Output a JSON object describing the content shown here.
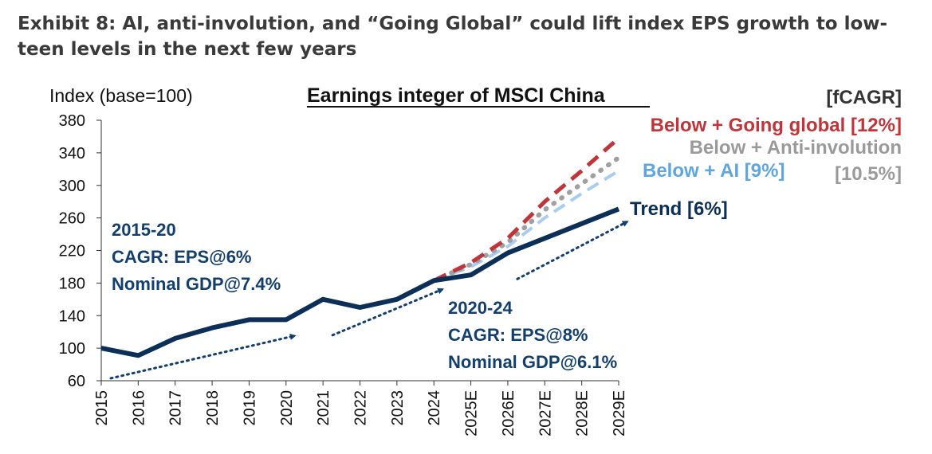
{
  "exhibit": {
    "title": "Exhibit 8: AI, anti-involution, and “Going Global” could lift index EPS growth to low-teen levels in the next few years"
  },
  "colors": {
    "trend": "#0b2f57",
    "going_global": "#c0343a",
    "anti_involution": "#a0a0a0",
    "ai": "#a8cdee",
    "axis": "#333333",
    "annotation": "#123f6e"
  },
  "chart_data": {
    "type": "line",
    "title": "Earnings integer of MSCI China",
    "ylabel": "Index (base=100)",
    "legend_header": "[fCAGR]",
    "x": [
      "2015",
      "2016",
      "2017",
      "2018",
      "2019",
      "2020",
      "2021",
      "2022",
      "2023",
      "2024",
      "2025E",
      "2026E",
      "2027E",
      "2028E",
      "2029E"
    ],
    "ylim": [
      60,
      380
    ],
    "yticks": [
      60,
      100,
      140,
      180,
      220,
      260,
      300,
      340,
      380
    ],
    "series": [
      {
        "name": "Trend",
        "label": "Trend [6%]",
        "style": "solid",
        "values": [
          100,
          91,
          112,
          125,
          135,
          135,
          160,
          150,
          160,
          183,
          190,
          217,
          235,
          253,
          271
        ]
      },
      {
        "name": "Below + Going global",
        "label": "Below + Going global [12%]",
        "style": "dashed",
        "values": [
          null,
          null,
          null,
          null,
          null,
          null,
          null,
          null,
          null,
          183,
          205,
          235,
          280,
          318,
          358
        ]
      },
      {
        "name": "Below + Anti-involution",
        "label": "Below + Anti-involution",
        "cagr_label": "[10.5%]",
        "style": "dotted",
        "values": [
          null,
          null,
          null,
          null,
          null,
          null,
          null,
          null,
          null,
          183,
          203,
          230,
          270,
          302,
          334
        ]
      },
      {
        "name": "Below + AI",
        "label": "Below + AI [9%]",
        "style": "dashed",
        "values": [
          null,
          null,
          null,
          null,
          null,
          null,
          null,
          null,
          null,
          183,
          200,
          225,
          260,
          290,
          318
        ]
      }
    ],
    "annotations": [
      {
        "lines": [
          "2015-20",
          "CAGR: EPS@6%",
          "Nominal GDP@7.4%"
        ]
      },
      {
        "lines": [
          "2020-24",
          "CAGR: EPS@8%",
          "Nominal GDP@6.1%"
        ]
      }
    ],
    "trend_arrows": [
      {
        "from": [
          "2015",
          63
        ],
        "to": [
          "2020",
          115
        ]
      },
      {
        "from": [
          "2021",
          116
        ],
        "to": [
          "2024",
          172
        ]
      },
      {
        "from": [
          "2026E",
          185
        ],
        "to": [
          "2029E",
          255
        ]
      }
    ]
  }
}
